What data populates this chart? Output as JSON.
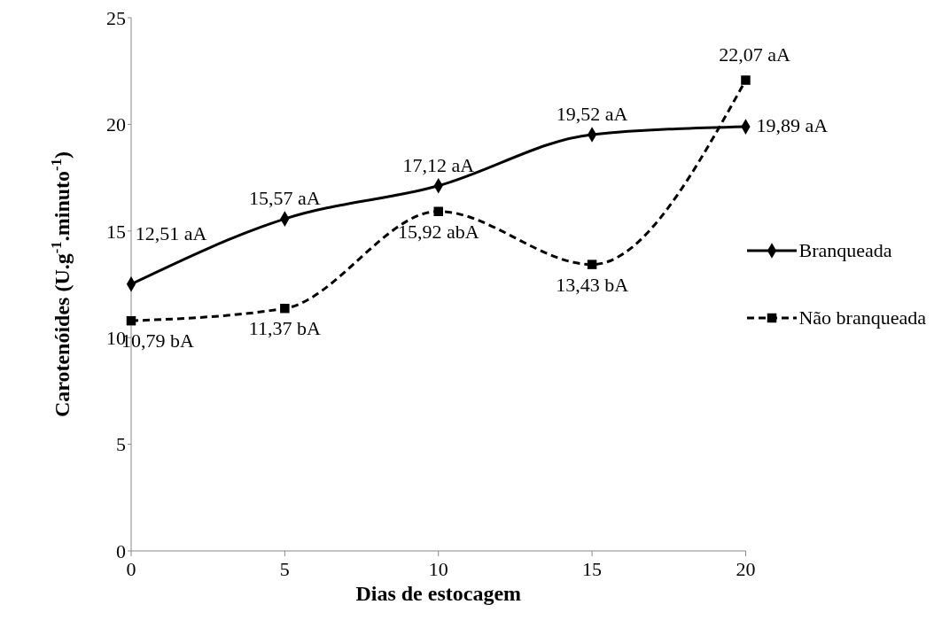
{
  "chart_data": {
    "type": "line",
    "xlabel": "Dias de estocagem",
    "ylabel": "Carotenóides (U.g$^{-1}$.minuto$^{-1}$)",
    "categories": [
      "0",
      "5",
      "10",
      "15",
      "20"
    ],
    "series": [
      {
        "name": "Branqueada",
        "color": "#000000",
        "marker": "diamond",
        "line_style": "solid",
        "values": [
          12.51,
          15.57,
          17.12,
          19.52,
          19.89
        ],
        "value_labels": [
          "12,51 aA",
          "15,57 aA",
          "17,12 aA",
          "19,52 aA",
          "19,89 aA"
        ]
      },
      {
        "name": "Não branqueada",
        "color": "#000000",
        "marker": "square",
        "line_style": "dashed",
        "values": [
          10.79,
          11.37,
          15.92,
          13.43,
          22.07
        ],
        "value_labels": [
          "10,79 bA",
          "11,37 bA",
          "15,92 abA",
          "13,43 bA",
          "22,07 aA"
        ]
      }
    ],
    "ylim": [
      0,
      25
    ],
    "yticks": [
      0,
      5,
      10,
      15,
      20,
      25
    ],
    "grid": false,
    "legend": "right"
  }
}
